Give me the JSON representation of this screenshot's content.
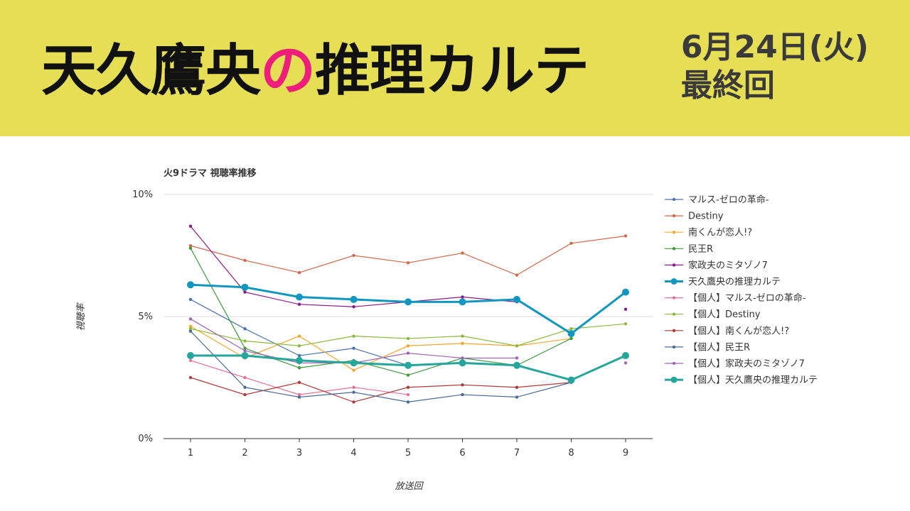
{
  "banner": {
    "title_pre": "天久鷹央",
    "title_hl": "の",
    "title_post": "推理カルテ",
    "date": "6月24日(火)",
    "subtitle": "最終回",
    "bg_color": "#e6df56",
    "accent_color": "#ee1f7a"
  },
  "chart_data": {
    "type": "line",
    "title": "火9ドラマ 視聴率推移",
    "xlabel": "放送回",
    "ylabel": "視聴率",
    "x": [
      1,
      2,
      3,
      4,
      5,
      6,
      7,
      8,
      9
    ],
    "ylim": [
      0,
      10
    ],
    "yticks": [
      "0%",
      "5%",
      "10%"
    ],
    "grid": true,
    "legend_position": "right",
    "series": [
      {
        "name": "マルス-ゼロの革命-",
        "color": "#4a72b0",
        "values": [
          5.7,
          4.5,
          3.4,
          3.7,
          3.0,
          null,
          null,
          null,
          null
        ]
      },
      {
        "name": "Destiny",
        "color": "#d0694a",
        "values": [
          7.9,
          7.3,
          6.8,
          7.5,
          7.2,
          7.6,
          6.7,
          8.0,
          8.3
        ]
      },
      {
        "name": "南くんが恋人!?",
        "color": "#f0a830",
        "values": [
          4.6,
          3.3,
          4.2,
          2.8,
          3.8,
          3.9,
          3.8,
          4.1,
          null
        ]
      },
      {
        "name": "民王R",
        "color": "#3e9a3e",
        "values": [
          7.8,
          3.7,
          2.9,
          3.2,
          2.6,
          3.3,
          3.0,
          4.1,
          null
        ]
      },
      {
        "name": "家政夫のミタゾノ7",
        "color": "#8a1b8a",
        "values": [
          8.7,
          6.0,
          5.5,
          5.4,
          5.6,
          5.8,
          5.6,
          null,
          5.3
        ]
      },
      {
        "name": "天久鷹央の推理カルテ",
        "color": "#1196c0",
        "values": [
          6.3,
          6.2,
          5.8,
          5.7,
          5.6,
          5.6,
          5.7,
          4.3,
          6.0
        ],
        "bold": true
      },
      {
        "name": "【個人】マルス-ゼロの革命-",
        "color": "#e57399",
        "values": [
          3.2,
          2.5,
          1.8,
          2.1,
          1.8,
          null,
          null,
          null,
          null
        ]
      },
      {
        "name": "【個人】Destiny",
        "color": "#8ab83a",
        "values": [
          4.5,
          4.0,
          3.8,
          4.2,
          4.1,
          4.2,
          3.8,
          4.5,
          4.7
        ]
      },
      {
        "name": "【個人】南くんが恋人!?",
        "color": "#b03a3a",
        "values": [
          2.5,
          1.8,
          2.3,
          1.5,
          2.1,
          2.2,
          2.1,
          2.3,
          null
        ]
      },
      {
        "name": "【個人】民王R",
        "color": "#4a6a98",
        "values": [
          4.4,
          2.1,
          1.7,
          1.9,
          1.5,
          1.8,
          1.7,
          2.3,
          null
        ]
      },
      {
        "name": "【個人】家政夫のミタゾノ7",
        "color": "#a064b4",
        "values": [
          4.9,
          3.6,
          3.1,
          3.1,
          3.5,
          3.3,
          3.3,
          null,
          3.1
        ]
      },
      {
        "name": "【個人】天久鷹央の推理カルテ",
        "color": "#26a69a",
        "values": [
          3.4,
          3.4,
          3.2,
          3.1,
          3.0,
          3.1,
          3.0,
          2.4,
          3.4
        ],
        "bold": true
      }
    ]
  }
}
